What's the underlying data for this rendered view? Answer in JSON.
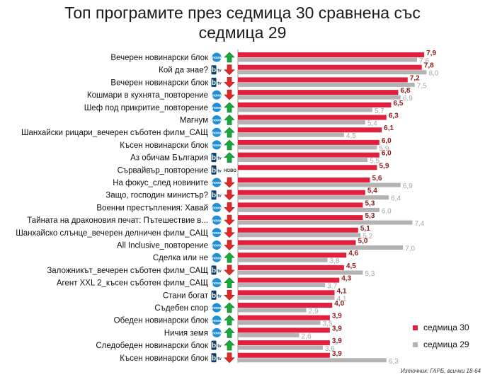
{
  "title": "Топ програмите през седмица 30 сравнена със седмица 29",
  "source": "Източник: ГАРБ, всички 18-64",
  "colors": {
    "current": "#e0203c",
    "previous": "#b3b3b3",
    "current_label": "#8b1a1a",
    "previous_label": "#a6a6a6",
    "nova": "#1f8ed6",
    "btv": "#0a3f6e",
    "up": "#18a83c",
    "down": "#e02a2a"
  },
  "chart_data": {
    "type": "bar",
    "orientation": "horizontal",
    "categories": [
      "Вечерен новинарски блок",
      "Кой да знае?",
      "Вечерен новинарски блок",
      "Кошмари в кухнята_повторение",
      "Шеф под прикритие_повторение",
      "Магнум",
      "Шанхайски рицари_вечерен съботен филм_САЩ",
      "Късен новинарски блок",
      "Аз обичам България",
      "Сървайвър_повторение",
      "На фокус_след новините",
      "Защо, господин министър?",
      "Военни престъпления: Хавай",
      "Тайната на драконовия печат: Пътешествие в...",
      "Шанхайско слънце_вечерен делничен филм_САЩ",
      "All Inclusive_повторение",
      "Сделка или не",
      "Заложникът_вечерен съботен филм_САЩ",
      "Агент XXL 2_късен съботен филм_САЩ",
      "Стани богат",
      "Съдебен спор",
      "Обеден новинарски блок",
      "Ничия земя",
      "Следобеден новинарски блок",
      "Късен новинарски блок"
    ],
    "series": [
      {
        "name": "седмица 30",
        "values": [
          7.9,
          7.8,
          7.2,
          6.8,
          6.5,
          6.3,
          6.1,
          6.0,
          6.0,
          5.9,
          5.6,
          5.4,
          5.3,
          5.3,
          5.1,
          5.0,
          4.6,
          4.5,
          4.3,
          4.1,
          4.0,
          3.9,
          3.9,
          3.9,
          3.9
        ],
        "labels": [
          "7,9",
          "7,8",
          "7,2",
          "6,8",
          "6,5",
          "6,3",
          "6,1",
          "6,0",
          "6,0",
          "5,9",
          "5,6",
          "5,4",
          "5,3",
          "5,3",
          "5,1",
          "5,0",
          "4,6",
          "4,5",
          "4,3",
          "4,1",
          "4,0",
          "3,9",
          "3,9",
          "3,9",
          "3,9"
        ]
      },
      {
        "name": "седмица 29",
        "values": [
          7.6,
          8.0,
          7.5,
          6.9,
          5.7,
          5.4,
          4.5,
          5.9,
          5.5,
          null,
          6.9,
          6.4,
          6.0,
          7.4,
          5.2,
          7.0,
          3.8,
          5.3,
          3.7,
          4.1,
          2.9,
          3.5,
          2.6,
          3.6,
          6.3
        ],
        "labels": [
          "7,6",
          "8,0",
          "7,5",
          "6,9",
          "5,7",
          "5,4",
          "4,5",
          "5,9",
          "5,5",
          "",
          "6,9",
          "6,4",
          "6,0",
          "7,4",
          "5,2",
          "7,0",
          "3,8",
          "5,3",
          "3,7",
          "4,1",
          "2,9",
          "3,5",
          "2,6",
          "3,6",
          "6,3"
        ]
      }
    ],
    "channels": [
      "nova",
      "btv",
      "btv",
      "nova",
      "nova",
      "nova",
      "nova",
      "nova",
      "btv",
      "btv",
      "nova",
      "btv",
      "nova",
      "nova",
      "nova",
      "nova",
      "nova",
      "btv",
      "nova",
      "btv",
      "nova",
      "nova",
      "nova",
      "btv",
      "btv"
    ],
    "channel_names": {
      "nova": "nova",
      "btv": "btv"
    },
    "trend": [
      "up",
      "down",
      "down",
      "down",
      "up",
      "up",
      "up",
      "up",
      "up",
      "new",
      "down",
      "down",
      "down",
      "down",
      "down",
      "down",
      "up",
      "down",
      "up",
      "down",
      "up",
      "up",
      "up",
      "up",
      "down"
    ],
    "new_badge": "НОВО",
    "xlim": [
      0,
      9.5
    ],
    "legend": "right"
  }
}
